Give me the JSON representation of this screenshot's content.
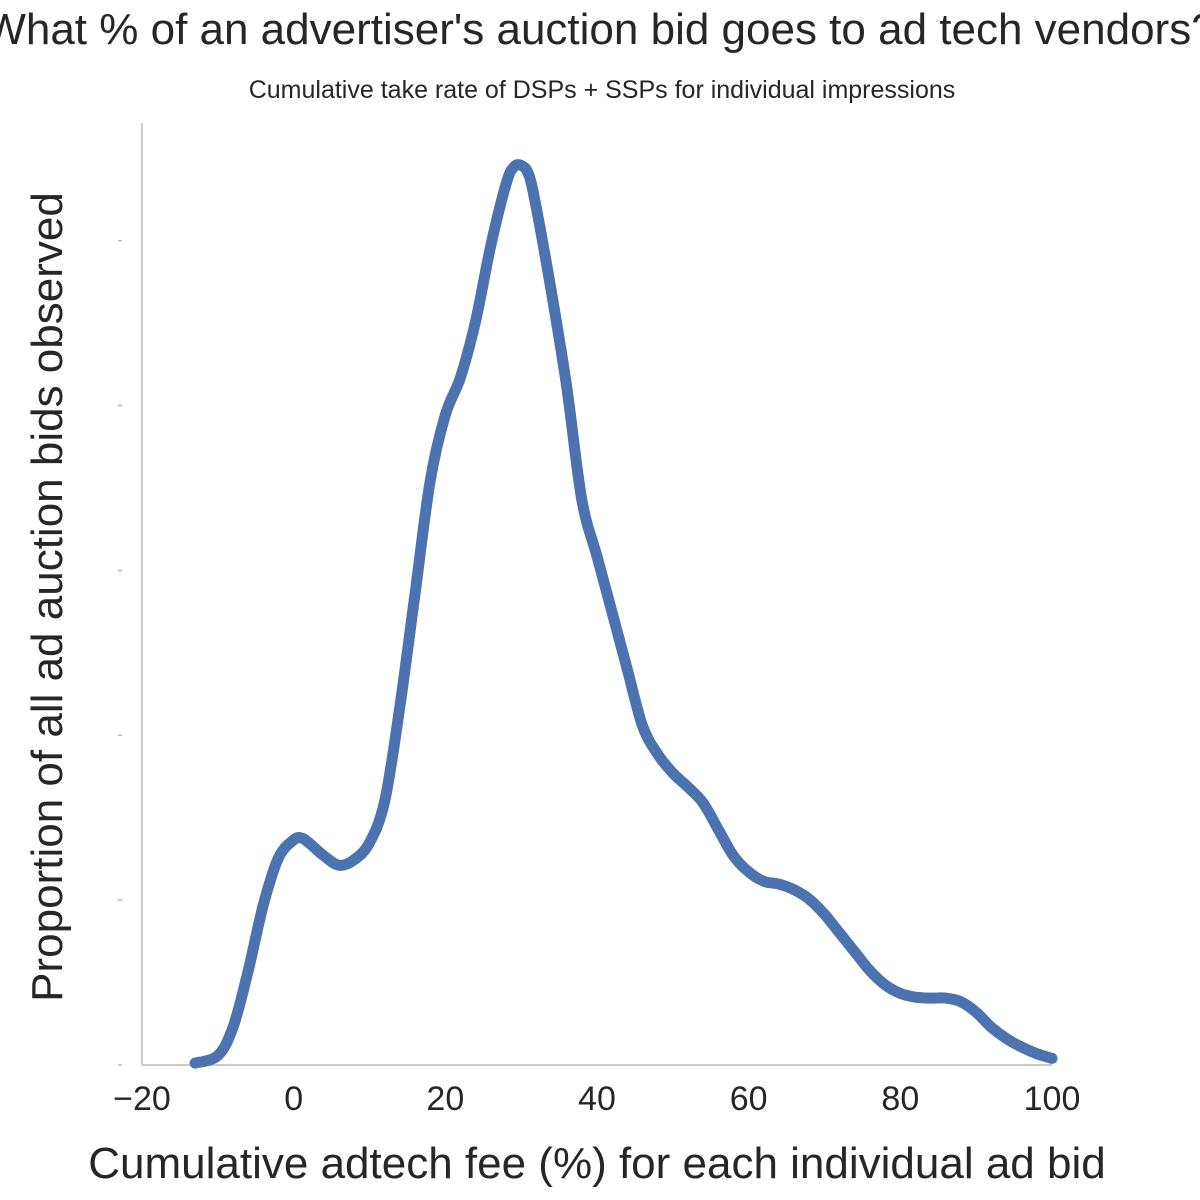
{
  "chart_data": {
    "type": "line",
    "title": "What % of an advertiser's auction bid goes to ad tech vendors?",
    "subtitle": "Cumulative take rate of DSPs + SSPs for individual impressions",
    "xlabel": "Cumulative adtech fee (%) for each individual ad bid",
    "ylabel": "Proportion of all ad auction bids observed",
    "xlim": [
      -20,
      100
    ],
    "ylim": [
      0,
      1.0
    ],
    "x_ticks": [
      -20,
      0,
      20,
      40,
      60,
      80,
      100
    ],
    "x_tick_labels": [
      "−20",
      "0",
      "20",
      "40",
      "60",
      "80",
      "100"
    ],
    "y_ticks": [
      0,
      0.175,
      0.35,
      0.525,
      0.7,
      0.875
    ],
    "y_tick_labels_shown": false,
    "grid": false,
    "series": [
      {
        "color": "#4c72b0",
        "x": [
          -13,
          -10,
          -8,
          -6,
          -4,
          -2,
          0,
          1,
          2,
          4,
          6,
          8,
          10,
          12,
          14,
          16,
          18,
          20,
          22,
          24,
          26,
          28,
          29,
          30,
          31,
          32,
          34,
          36,
          38,
          40,
          42,
          44,
          46,
          48,
          50,
          52,
          54,
          56,
          58,
          60,
          62,
          64,
          66,
          68,
          70,
          72,
          74,
          76,
          78,
          80,
          82,
          84,
          86,
          88,
          90,
          92,
          94,
          96,
          98,
          100
        ],
        "y": [
          0.002,
          0.01,
          0.04,
          0.1,
          0.17,
          0.22,
          0.239,
          0.241,
          0.236,
          0.222,
          0.212,
          0.218,
          0.236,
          0.28,
          0.38,
          0.5,
          0.62,
          0.69,
          0.73,
          0.79,
          0.87,
          0.935,
          0.953,
          0.955,
          0.945,
          0.91,
          0.82,
          0.72,
          0.6,
          0.54,
          0.48,
          0.42,
          0.36,
          0.33,
          0.31,
          0.295,
          0.278,
          0.25,
          0.222,
          0.205,
          0.195,
          0.192,
          0.186,
          0.176,
          0.16,
          0.14,
          0.12,
          0.1,
          0.085,
          0.076,
          0.072,
          0.071,
          0.071,
          0.067,
          0.056,
          0.04,
          0.028,
          0.019,
          0.012,
          0.007
        ]
      }
    ]
  }
}
